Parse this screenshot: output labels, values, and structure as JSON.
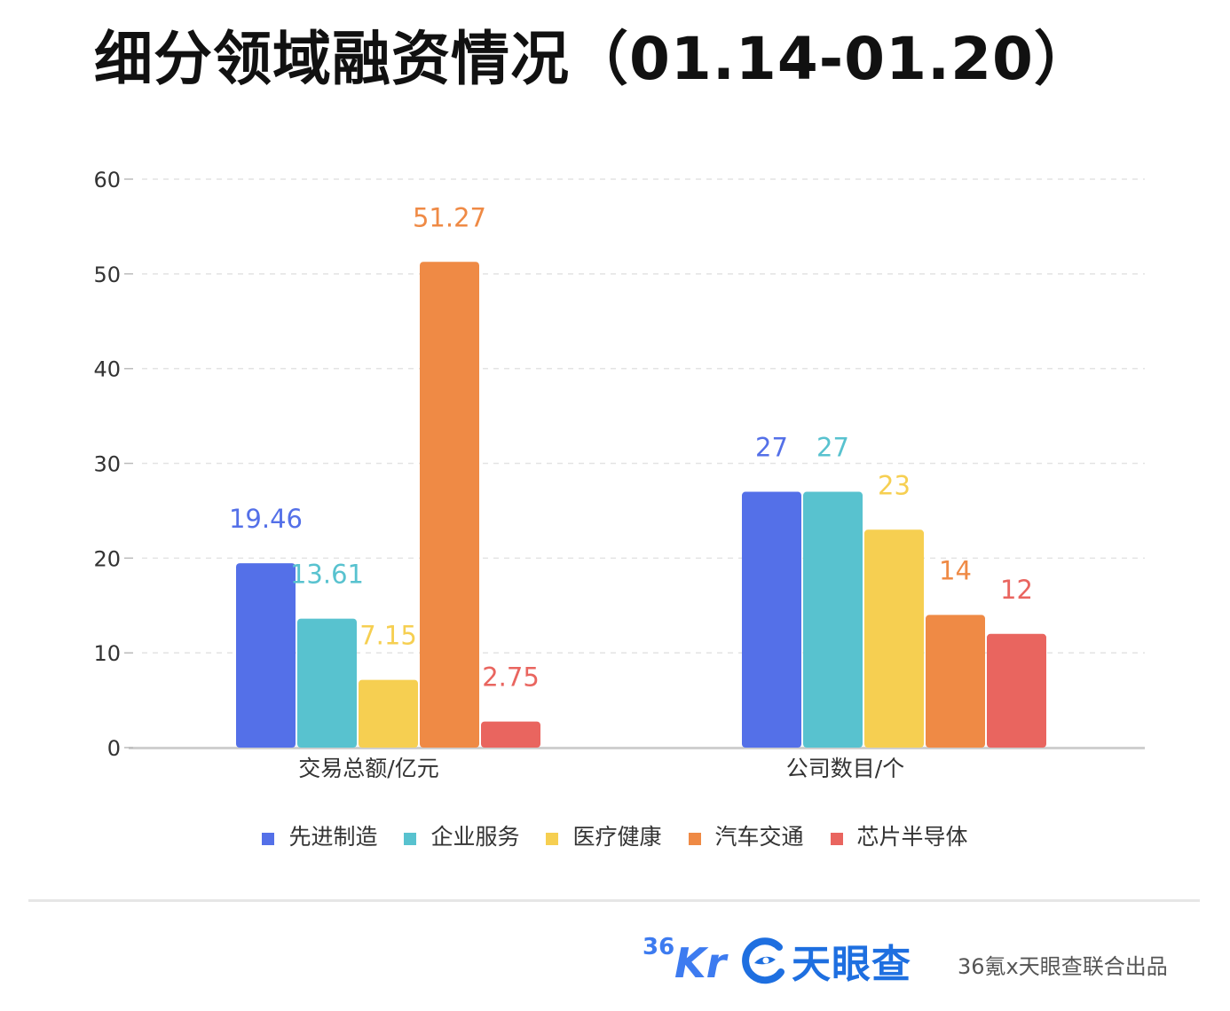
{
  "chart_data": {
    "type": "bar",
    "title": "细分领域融资情况（01.14-01.20）",
    "categories": [
      "交易总额/亿元",
      "公司数目/个"
    ],
    "series": [
      {
        "name": "先进制造",
        "values": [
          19.46,
          27
        ],
        "labels": [
          "19.46",
          "27"
        ],
        "color": "#5470e8"
      },
      {
        "name": "企业服务",
        "values": [
          13.61,
          27
        ],
        "labels": [
          "13.61",
          "27"
        ],
        "color": "#58c2cf"
      },
      {
        "name": "医疗健康",
        "values": [
          7.15,
          23
        ],
        "labels": [
          "7.15",
          "23"
        ],
        "color": "#f6cf51"
      },
      {
        "name": "汽车交通",
        "values": [
          51.27,
          14
        ],
        "labels": [
          "51.27",
          "14"
        ],
        "color": "#ef8a45"
      },
      {
        "name": "芯片半导体",
        "values": [
          2.75,
          12
        ],
        "labels": [
          "2.75",
          "12"
        ],
        "color": "#e9655f"
      }
    ],
    "yticks": [
      "0",
      "10",
      "20",
      "30",
      "40",
      "50",
      "60"
    ],
    "ylim": [
      0,
      60
    ],
    "grid": true,
    "legend": "bottom-center"
  },
  "footer": {
    "logo_36kr_superscript": "36",
    "logo_36kr_text": "Kr",
    "logo_tianyancha_text": "天眼查",
    "credit": "36氪x天眼查联合出品"
  }
}
